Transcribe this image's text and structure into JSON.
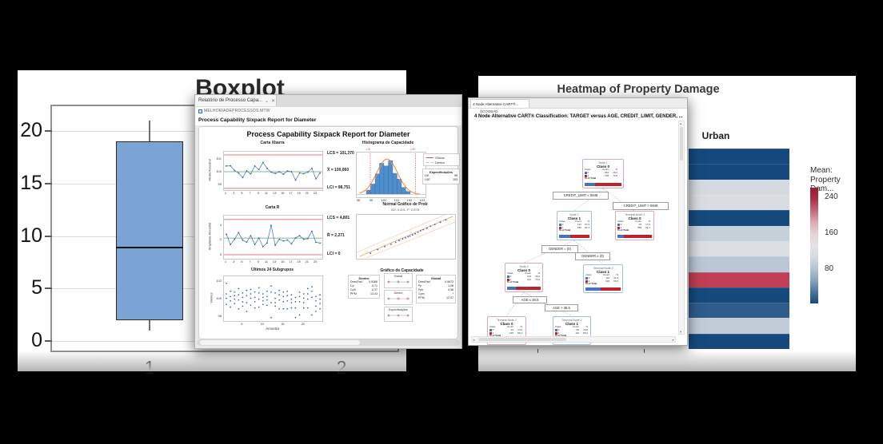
{
  "canvas": {
    "background": "#000000"
  },
  "boxplot_window": {
    "title": "Boxplot",
    "x_categories": [
      "1",
      "2"
    ],
    "box_fill": "#7ba4d4",
    "chart_data": {
      "type": "box",
      "title": "Boxplot",
      "categories": [
        "1",
        "2"
      ],
      "series": [
        {
          "category": "1",
          "whisker_low": 1,
          "q1": 2,
          "median": 9,
          "q3": 19,
          "whisker_high": 21
        }
      ],
      "yticks": [
        0,
        5,
        10,
        15,
        20
      ],
      "ylim": [
        -0.5,
        22.5
      ],
      "grid": true,
      "note": "category 2 box hidden behind overlapping report window"
    }
  },
  "minitab_window": {
    "tab": {
      "title": "Relatório de Processo Capa...",
      "controls": [
        "⌄",
        "✕"
      ]
    },
    "worksheet": "MELHORIADEPROCESSOS.MTW",
    "heading": "Process Capability Sixpack Report for Diameter",
    "report_title": "Process Capability Sixpack Report for Diameter",
    "xbar_chart": {
      "title": "Carta Xbarra",
      "ylabel": "Média Amostral",
      "yticks": [
        101,
        100,
        99
      ],
      "xticks": [
        1,
        3,
        5,
        7,
        9,
        11,
        13,
        15,
        17,
        19,
        21,
        23
      ],
      "ucl_label": "LCS = 101,370",
      "mean_label": "X̄ = 100,060",
      "lcl_label": "LCI = 98,751",
      "ucl": 101.37,
      "mean": 100.06,
      "lcl": 98.751,
      "series": [
        100.5,
        100.52,
        100.15,
        99.95,
        99.6,
        100.12,
        99.88,
        100.5,
        100.22,
        100.78,
        100.32,
        100.02,
        99.92,
        100.06,
        99.86,
        100.12,
        100.06,
        99.4,
        99.96,
        99.9,
        100.02,
        100.32,
        99.5,
        99.96
      ]
    },
    "r_chart": {
      "title": "Carta R",
      "ylabel": "Amplitude Amostral",
      "yticks": [
        4,
        2,
        0
      ],
      "ucl_label": "LCS = 4,801",
      "mean_label": "R̄ = 2,271",
      "lcl_label": "LCI = 0",
      "ucl": 4.801,
      "mean": 2.271,
      "lcl": 0,
      "series": [
        2.8,
        1.4,
        2.1,
        3.0,
        2.0,
        1.7,
        2.6,
        1.4,
        2.3,
        1.1,
        1.6,
        4.0,
        1.3,
        2.1,
        1.9,
        2.0,
        1.5,
        2.3,
        2.6,
        2.1,
        2.2,
        3.2,
        1.7,
        1.6
      ]
    },
    "histogram": {
      "title": "Histograma de Capacidade",
      "xticks": [
        98,
        99,
        100,
        101,
        102,
        103
      ],
      "lsl_label": "LIE",
      "usl_label": "LSE",
      "legend": [
        {
          "label": "Global",
          "style": "solid"
        },
        {
          "label": "Dentro",
          "style": "dashed"
        }
      ],
      "spec_box": {
        "title": "Especificações",
        "rows": [
          [
            "LIE",
            "99"
          ],
          [
            "LSE",
            "103"
          ]
        ]
      },
      "bar_heights": [
        0.12,
        0.3,
        0.6,
        0.92,
        0.84,
        1.0,
        0.62,
        0.45,
        0.2,
        0.08
      ]
    },
    "normal_plot": {
      "title": "Normal Gráfico de Prob",
      "subtitle": "AD: 0,201, P: 0,878",
      "points": [
        [
          0.1,
          0.06
        ],
        [
          0.18,
          0.16
        ],
        [
          0.26,
          0.24
        ],
        [
          0.33,
          0.3
        ],
        [
          0.38,
          0.35
        ],
        [
          0.42,
          0.4
        ],
        [
          0.46,
          0.44
        ],
        [
          0.49,
          0.47
        ],
        [
          0.52,
          0.5
        ],
        [
          0.54,
          0.52
        ],
        [
          0.57,
          0.55
        ],
        [
          0.6,
          0.58
        ],
        [
          0.63,
          0.62
        ],
        [
          0.66,
          0.66
        ],
        [
          0.69,
          0.69
        ],
        [
          0.73,
          0.73
        ],
        [
          0.77,
          0.78
        ],
        [
          0.82,
          0.83
        ],
        [
          0.88,
          0.89
        ],
        [
          0.94,
          0.95
        ]
      ]
    },
    "subgroups_chart": {
      "title": "Últimos 24 Subgrupos",
      "ylabel": "Valores",
      "xlabel": "Amostra",
      "yticks": [
        102,
        100,
        98
      ],
      "xticks": [
        5,
        10,
        15,
        20
      ],
      "samples": [
        [
          101.8,
          100.6,
          100.1,
          99.4
        ],
        [
          100.9,
          100.3,
          99.8,
          99.1
        ],
        [
          100.8,
          100.4,
          100.0,
          99.5
        ],
        [
          101.2,
          100.5,
          99.9,
          98.9
        ],
        [
          100.7,
          100.2,
          99.7,
          99.2
        ],
        [
          101.0,
          100.4,
          99.6,
          98.6
        ],
        [
          101.1,
          100.6,
          100.1,
          99.3
        ],
        [
          100.8,
          100.2,
          99.7,
          99.0
        ],
        [
          101.3,
          100.7,
          100.0,
          99.1
        ],
        [
          100.6,
          100.2,
          99.8,
          99.4
        ],
        [
          100.9,
          100.3,
          99.9,
          99.3
        ],
        [
          101.5,
          100.8,
          99.6,
          97.9
        ],
        [
          100.7,
          100.1,
          99.6,
          99.2
        ],
        [
          101.0,
          100.5,
          99.9,
          98.9
        ],
        [
          100.8,
          100.3,
          99.7,
          98.9
        ],
        [
          100.9,
          100.4,
          99.8,
          98.9
        ],
        [
          100.5,
          100.0,
          99.6,
          99.0
        ],
        [
          100.2,
          99.7,
          99.0,
          97.9
        ],
        [
          100.8,
          100.3,
          99.7,
          98.2
        ],
        [
          100.6,
          100.1,
          99.6,
          99.0
        ],
        [
          101.2,
          100.6,
          100.0,
          99.0
        ],
        [
          101.4,
          100.9,
          100.2,
          98.2
        ],
        [
          100.3,
          99.8,
          99.2,
          98.6
        ],
        [
          100.5,
          100.0,
          99.5,
          98.9
        ]
      ]
    },
    "capability": {
      "title": "Gráfico de Capacidade",
      "within_box": {
        "title": "Dentro",
        "rows": [
          [
            "DesvPad",
            "0,9366"
          ],
          [
            "Cp",
            "0,71"
          ],
          [
            "CpK",
            "0,37"
          ],
          [
            "PPM",
            "13,43"
          ]
        ]
      },
      "overall_box": {
        "title": "Global",
        "rows": [
          [
            "DesvPad",
            "0,9673"
          ],
          [
            "Pp",
            "1,08"
          ],
          [
            "Ppk",
            "0,56"
          ],
          [
            "Cpm",
            "*"
          ],
          [
            "PPM",
            "12,07"
          ]
        ]
      },
      "intervals": [
        "Global",
        "Dentro",
        "Especificações"
      ]
    }
  },
  "cart_window": {
    "tab": {
      "title": "4 Node Alternative CART®..."
    },
    "worksheet": "SCOOBAD",
    "heading": "4 Node Alternative CART® Classification: TARGET versus AGE, CREDIT_LIMIT, GENDER, ...",
    "table_header": [
      "Class",
      "Count",
      "%"
    ],
    "total_label": "% of Total",
    "class_colors": {
      "class0": "#4472c4",
      "class1": "#c0222c"
    },
    "nodes": [
      {
        "id": "n1",
        "line1": "Node 1",
        "class_label": "Class 0",
        "border": "pink",
        "rows": [
          [
            "0",
            "292",
            "29,2"
          ],
          [
            "1",
            "708",
            "70,8"
          ]
        ],
        "blue_pct": 29
      },
      {
        "id": "n2",
        "line1": "Node 2",
        "class_label": "Class 1",
        "border": "blue",
        "rows": [
          [
            "0",
            "214",
            "37,9"
          ],
          [
            "1",
            "350",
            "62,1"
          ]
        ],
        "blue_pct": 38
      },
      {
        "id": "t4",
        "line1": "Terminal Node 4",
        "class_label": "Class 0",
        "border": "pink",
        "rows": [
          [
            "0",
            "78",
            "17,9"
          ],
          [
            "1",
            "358",
            "82,1"
          ]
        ],
        "blue_pct": 18
      },
      {
        "id": "n3",
        "line1": "Node 3",
        "class_label": "Class 0",
        "border": "pink",
        "rows": [
          [
            "0",
            "104",
            "25,0"
          ],
          [
            "1",
            "312",
            "75,0"
          ]
        ],
        "blue_pct": 25
      },
      {
        "id": "t3",
        "line1": "Terminal Node 3",
        "class_label": "Class 1",
        "border": "blue",
        "rows": [
          [
            "0",
            "110",
            "44,4"
          ],
          [
            "1",
            "138",
            "55,6"
          ]
        ],
        "blue_pct": 44
      },
      {
        "id": "t1",
        "line1": "Terminal Node 1",
        "class_label": "Class 0",
        "border": "pink",
        "rows": [
          [
            "0",
            "24",
            "10,9"
          ],
          [
            "1",
            "196",
            "89,1"
          ]
        ],
        "blue_pct": 11
      },
      {
        "id": "t2",
        "line1": "Terminal Node 2",
        "class_label": "Class 1",
        "border": "blue",
        "rows": [
          [
            "0",
            "80",
            "40,8"
          ],
          [
            "1",
            "116",
            "59,2"
          ]
        ],
        "blue_pct": 41
      }
    ],
    "splits": [
      {
        "id": "s1",
        "label": "CREDIT_LIMIT ≤ 5848"
      },
      {
        "id": "s2",
        "label": "CREDIT_LIMIT > 5848"
      },
      {
        "id": "s3",
        "label": "GENDER = (0)"
      },
      {
        "id": "s4",
        "label": "GENDER ≠ (0)"
      },
      {
        "id": "s5",
        "label": "AGE ≤ 38,5"
      },
      {
        "id": "s6",
        "label": "AGE > 38,5"
      }
    ]
  },
  "heatmap_window": {
    "title": "Heatmap of Property Damage",
    "column_label": "Urban",
    "legend": {
      "title_line1": "Mean:",
      "title_line2": "Property Dam...",
      "ticks": [
        "240",
        "160",
        "80"
      ],
      "gradient": [
        "#9a1a32",
        "#a93248",
        "#c4697a",
        "#ddabb4",
        "#e7d3d6",
        "#e5e2e3",
        "#d5dbe0",
        "#b4c3d2",
        "#8aa5bd",
        "#4a74a0",
        "#17497d"
      ]
    },
    "chart_data": {
      "type": "heatmap",
      "column": "Urban",
      "legend_scale": {
        "ticks": [
          240,
          160,
          80
        ]
      },
      "cells": [
        {
          "color": "#164a7e",
          "approx_value": 30
        },
        {
          "color": "#164a7e",
          "approx_value": 32
        },
        {
          "color": "#d5dae1",
          "approx_value": 140
        },
        {
          "color": "#d9dce1",
          "approx_value": 148
        },
        {
          "color": "#164a7e",
          "approx_value": 30
        },
        {
          "color": "#c7d1dc",
          "approx_value": 120
        },
        {
          "color": "#dadde2",
          "approx_value": 150
        },
        {
          "color": "#bac7d6",
          "approx_value": 105
        },
        {
          "color": "#c13f56",
          "approx_value": 235
        },
        {
          "color": "#164a7e",
          "approx_value": 30
        },
        {
          "color": "#2e5c8b",
          "approx_value": 55
        },
        {
          "color": "#c2ccd8",
          "approx_value": 110
        },
        {
          "color": "#164a7e",
          "approx_value": 28
        }
      ]
    }
  }
}
